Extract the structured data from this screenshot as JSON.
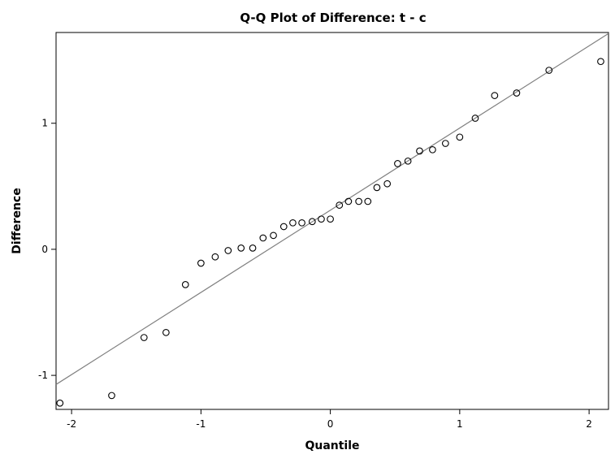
{
  "chart_data": {
    "type": "scatter",
    "title": "Q-Q Plot of Difference: t - c",
    "xlabel": "Quantile",
    "ylabel": "Difference",
    "xlim": [
      -2.12,
      2.15
    ],
    "ylim": [
      -1.27,
      1.72
    ],
    "xticks": [
      -2,
      -1,
      0,
      1,
      2
    ],
    "yticks": [
      -1,
      0,
      1
    ],
    "xtick_labels": [
      "-2",
      "-1",
      "0",
      "1",
      "2"
    ],
    "ytick_labels": [
      "-1",
      "0",
      "1"
    ],
    "grid": false,
    "reference_line": {
      "slope": 0.652,
      "intercept": 0.31
    },
    "points": [
      {
        "x": -2.09,
        "y": -1.22
      },
      {
        "x": -1.69,
        "y": -1.16
      },
      {
        "x": -1.44,
        "y": -0.7
      },
      {
        "x": -1.27,
        "y": -0.66
      },
      {
        "x": -1.12,
        "y": -0.28
      },
      {
        "x": -1.0,
        "y": -0.11
      },
      {
        "x": -0.89,
        "y": -0.06
      },
      {
        "x": -0.79,
        "y": -0.01
      },
      {
        "x": -0.69,
        "y": 0.01
      },
      {
        "x": -0.6,
        "y": 0.01
      },
      {
        "x": -0.52,
        "y": 0.09
      },
      {
        "x": -0.44,
        "y": 0.11
      },
      {
        "x": -0.36,
        "y": 0.18
      },
      {
        "x": -0.29,
        "y": 0.21
      },
      {
        "x": -0.22,
        "y": 0.21
      },
      {
        "x": -0.14,
        "y": 0.22
      },
      {
        "x": -0.07,
        "y": 0.24
      },
      {
        "x": 0.0,
        "y": 0.24
      },
      {
        "x": 0.07,
        "y": 0.35
      },
      {
        "x": 0.14,
        "y": 0.38
      },
      {
        "x": 0.22,
        "y": 0.38
      },
      {
        "x": 0.29,
        "y": 0.38
      },
      {
        "x": 0.36,
        "y": 0.49
      },
      {
        "x": 0.44,
        "y": 0.52
      },
      {
        "x": 0.52,
        "y": 0.68
      },
      {
        "x": 0.6,
        "y": 0.7
      },
      {
        "x": 0.69,
        "y": 0.78
      },
      {
        "x": 0.79,
        "y": 0.79
      },
      {
        "x": 0.89,
        "y": 0.84
      },
      {
        "x": 1.0,
        "y": 0.89
      },
      {
        "x": 1.12,
        "y": 1.04
      },
      {
        "x": 1.27,
        "y": 1.22
      },
      {
        "x": 1.44,
        "y": 1.24
      },
      {
        "x": 1.69,
        "y": 1.42
      },
      {
        "x": 2.09,
        "y": 1.49
      }
    ]
  }
}
